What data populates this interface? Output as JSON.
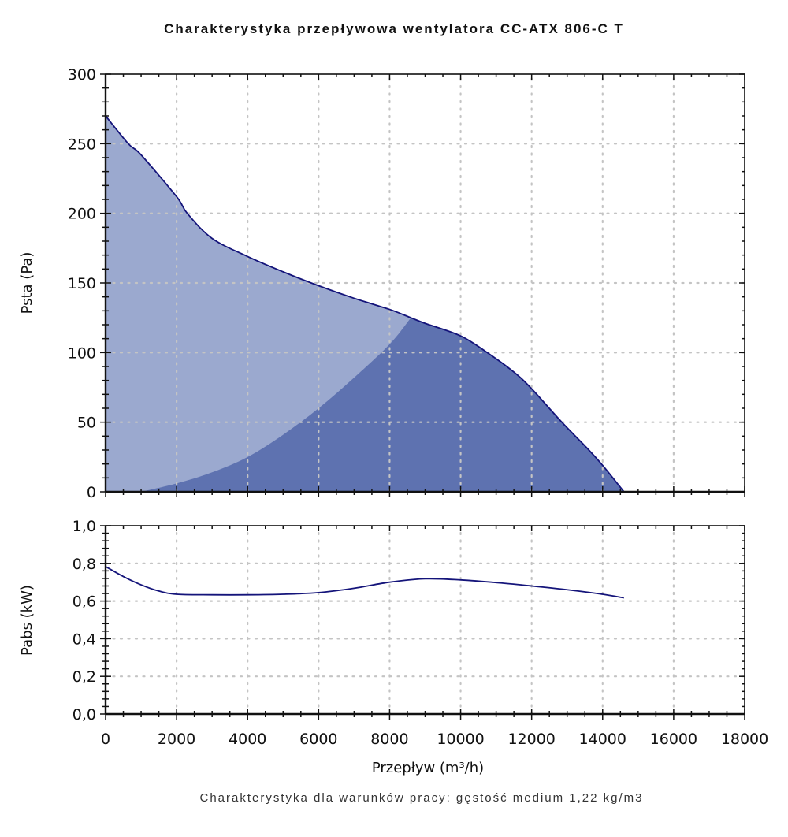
{
  "colors": {
    "light_fill": "#9ba9cf",
    "dark_fill": "#5e72b0",
    "curve": "#14147a",
    "grid": "#c4c4c4"
  },
  "title": "Charakterystyka przepływowa wentylatora CC-ATX 806-C T",
  "note": "Charakterystyka dla warunków pracy: gęstość medium 1,22 kg/m3",
  "chart_data": [
    {
      "type": "area",
      "title": "Charakterystyka przepływowa wentylatora CC-ATX 806-C T",
      "xlabel": "Przepływ (m³/h)",
      "ylabel": "Psta (Pa)",
      "xlim": [
        0,
        18000
      ],
      "ylim": [
        0,
        300
      ],
      "grid": true,
      "x_ticks": [
        0,
        2000,
        4000,
        6000,
        8000,
        10000,
        12000,
        14000,
        16000,
        18000
      ],
      "x_tick_labels": [
        "0",
        "2000",
        "4000",
        "6000",
        "8000",
        "10000",
        "12000",
        "14000",
        "16000",
        "18000"
      ],
      "y_ticks": [
        0,
        50,
        100,
        150,
        200,
        250,
        300
      ],
      "y_tick_labels": [
        "0",
        "50",
        "100",
        "150",
        "200",
        "250",
        "300"
      ],
      "series": [
        {
          "name": "Psta",
          "x": [
            0,
            640,
            1000,
            2000,
            2300,
            3000,
            4000,
            5000,
            6000,
            7000,
            8000,
            8600,
            9000,
            10000,
            10750,
            11500,
            12000,
            12850,
            13500,
            14000,
            14600
          ],
          "y": [
            270,
            250,
            242,
            212,
            200,
            182,
            169,
            158,
            148,
            139,
            131,
            125,
            121,
            112,
            100,
            86,
            74,
            50,
            33,
            19,
            0
          ]
        },
        {
          "name": "boundary",
          "x": [
            1000,
            2000,
            3000,
            4000,
            5000,
            6000,
            7000,
            8000,
            8600
          ],
          "y": [
            0,
            6,
            14,
            25,
            41,
            60,
            82,
            106,
            125
          ]
        }
      ]
    },
    {
      "type": "line",
      "xlabel": "Przepływ (m³/h)",
      "ylabel": "Pabs (kW)",
      "xlim": [
        0,
        18000
      ],
      "ylim": [
        0,
        1.0
      ],
      "grid": true,
      "y_ticks": [
        0,
        0.2,
        0.4,
        0.6,
        0.8,
        1.0
      ],
      "y_tick_labels": [
        "0,0",
        "0,2",
        "0,4",
        "0,6",
        "0,8",
        "1,0"
      ],
      "series": [
        {
          "name": "Pabs",
          "x": [
            0,
            500,
            1000,
            1500,
            2000,
            3000,
            4000,
            5000,
            6000,
            7000,
            8000,
            9000,
            10000,
            11000,
            12000,
            13000,
            14000,
            14600
          ],
          "y": [
            0.783,
            0.73,
            0.686,
            0.653,
            0.636,
            0.633,
            0.633,
            0.636,
            0.645,
            0.668,
            0.7,
            0.718,
            0.712,
            0.698,
            0.68,
            0.66,
            0.636,
            0.617
          ]
        }
      ]
    }
  ]
}
